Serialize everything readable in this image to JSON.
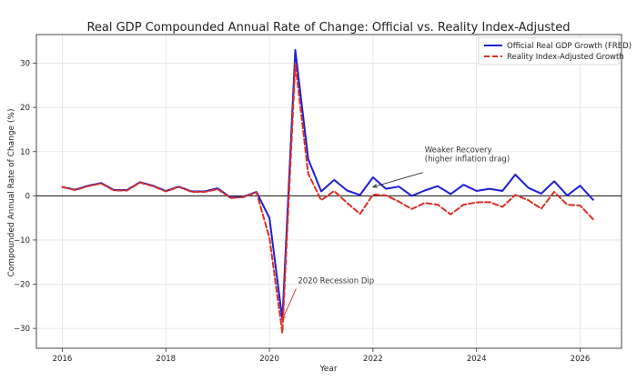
{
  "chart_data": {
    "type": "line",
    "title": "Real GDP Compounded Annual Rate of Change: Official vs. Reality Index-Adjusted",
    "xlabel": "Year",
    "ylabel": "Compounded Annual Rate of Change (%)",
    "xlim": [
      2015.5,
      2026.8
    ],
    "ylim": [
      -34.5,
      36.5
    ],
    "xticks": [
      2016,
      2018,
      2020,
      2022,
      2024,
      2026
    ],
    "yticks": [
      -30,
      -20,
      -10,
      0,
      10,
      20,
      30
    ],
    "grid": true,
    "legend_position": "top-right",
    "zero_line": true,
    "series": [
      {
        "name": "Official Real GDP Growth (FRED)",
        "color": "#1f1fd6",
        "style": "solid",
        "x": [
          2016.0,
          2016.25,
          2016.5,
          2016.75,
          2017.0,
          2017.25,
          2017.5,
          2017.75,
          2018.0,
          2018.25,
          2018.5,
          2018.75,
          2019.0,
          2019.25,
          2019.5,
          2019.75,
          2020.0,
          2020.25,
          2020.5,
          2020.75,
          2021.0,
          2021.25,
          2021.5,
          2021.75,
          2022.0,
          2022.25,
          2022.5,
          2022.75,
          2023.0,
          2023.25,
          2023.5,
          2023.75,
          2024.0,
          2024.25,
          2024.5,
          2024.75,
          2025.0,
          2025.25,
          2025.5,
          2025.75,
          2026.0,
          2026.25
        ],
        "values": [
          2.0,
          1.4,
          2.3,
          2.9,
          1.3,
          1.3,
          3.1,
          2.3,
          1.1,
          2.1,
          1.0,
          1.0,
          1.7,
          -0.4,
          -0.2,
          0.9,
          -5.0,
          -28.0,
          33.0,
          8.3,
          1.0,
          3.6,
          1.2,
          0.2,
          4.2,
          1.6,
          2.1,
          0.0,
          1.2,
          2.2,
          0.4,
          2.5,
          1.1,
          1.6,
          1.1,
          4.8,
          1.8,
          0.5,
          3.3,
          0.1,
          2.3,
          -0.9
        ]
      },
      {
        "name": "Reality Index-Adjusted Growth",
        "color": "#d93025",
        "style": "dashed",
        "x": [
          2016.0,
          2016.25,
          2016.5,
          2016.75,
          2017.0,
          2017.25,
          2017.5,
          2017.75,
          2018.0,
          2018.25,
          2018.5,
          2018.75,
          2019.0,
          2019.25,
          2019.5,
          2019.75,
          2020.0,
          2020.25,
          2020.5,
          2020.75,
          2021.0,
          2021.25,
          2021.5,
          2021.75,
          2022.0,
          2022.25,
          2022.5,
          2022.75,
          2023.0,
          2023.25,
          2023.5,
          2023.75,
          2024.0,
          2024.25,
          2024.5,
          2024.75,
          2025.0,
          2025.25,
          2025.5,
          2025.75,
          2026.0,
          2026.25
        ],
        "values": [
          2.0,
          1.3,
          2.2,
          2.8,
          1.2,
          1.2,
          3.0,
          2.2,
          1.0,
          2.0,
          0.9,
          0.9,
          1.5,
          -0.5,
          -0.3,
          0.8,
          -9.5,
          -31.0,
          30.0,
          5.0,
          -1.0,
          1.1,
          -1.6,
          -4.1,
          0.3,
          0.1,
          -1.3,
          -3.0,
          -1.6,
          -2.0,
          -4.2,
          -2.0,
          -1.5,
          -1.4,
          -2.5,
          0.2,
          -1.0,
          -2.9,
          0.9,
          -2.0,
          -2.2,
          -5.3
        ]
      }
    ],
    "annotations": [
      {
        "text": "2020 Recession Dip",
        "x": 2020.25,
        "y": -28.0,
        "text_x": 2020.55,
        "text_y": -19.8
      },
      {
        "text": "Weaker Recovery\n(higher inflation drag)",
        "x": 2022.0,
        "y": 2.0,
        "text_x": 2023.0,
        "text_y": 9.8
      }
    ]
  }
}
